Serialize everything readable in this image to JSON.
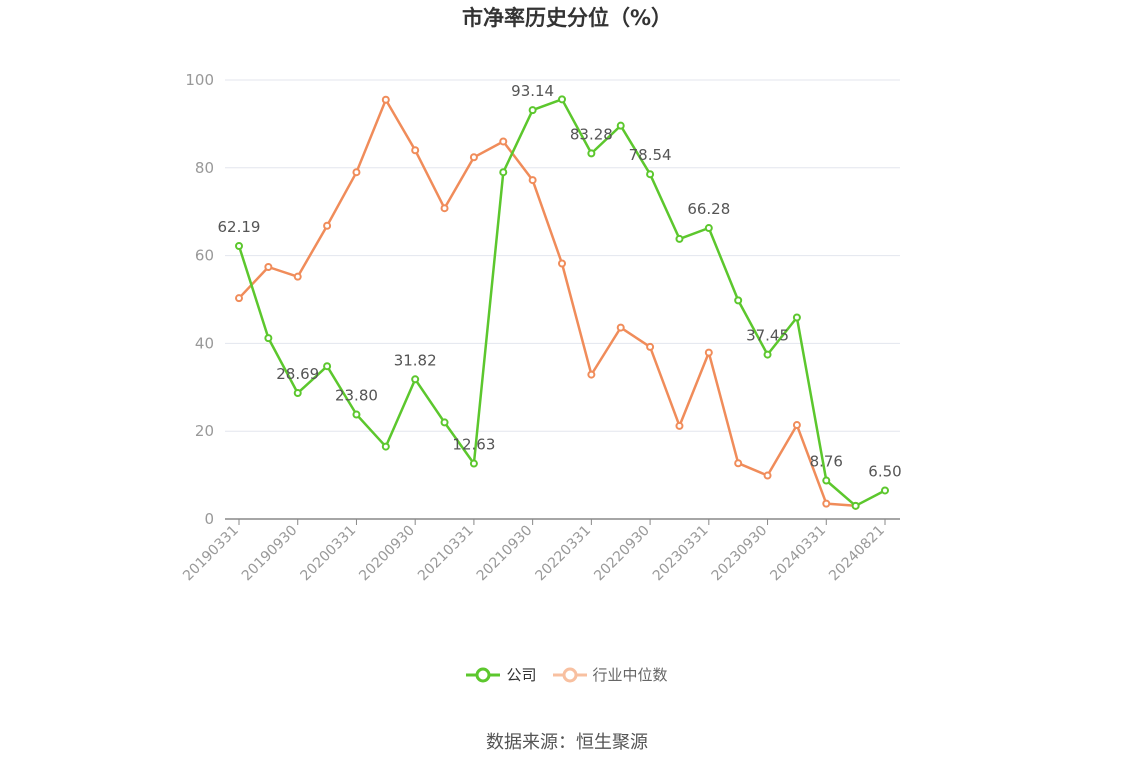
{
  "chart_data": {
    "type": "line",
    "title": "市净率历史分位（%）",
    "xlabel": "",
    "ylabel": "",
    "ylim": [
      0,
      100
    ],
    "yticks": [
      0,
      20,
      40,
      60,
      80,
      100
    ],
    "grid": true,
    "legend_position": "bottom",
    "x": [
      "20190331",
      "20190630",
      "20190930",
      "20191231",
      "20200331",
      "20200630",
      "20200930",
      "20201231",
      "20210331",
      "20210630",
      "20210930",
      "20211231",
      "20220331",
      "20220630",
      "20220930",
      "20221231",
      "20230331",
      "20230630",
      "20230930",
      "20231231",
      "20240331",
      "20240630",
      "20240821"
    ],
    "xtick_labels": [
      "20190331",
      "20190930",
      "20200331",
      "20200930",
      "20210331",
      "20210930",
      "20220331",
      "20220930",
      "20230331",
      "20230930",
      "20240331",
      "20240821"
    ],
    "series": [
      {
        "name": "公司",
        "color": "#5cc72d",
        "values": [
          62.19,
          41.2,
          28.69,
          34.8,
          23.8,
          16.5,
          31.82,
          22.0,
          12.63,
          79.0,
          93.14,
          95.6,
          83.28,
          89.6,
          78.54,
          63.8,
          66.28,
          49.8,
          37.45,
          45.9,
          8.76,
          3.0,
          6.5
        ],
        "labels": {
          "0": "62.19",
          "2": "28.69",
          "4": "23.80",
          "6": "31.82",
          "8": "12.63",
          "10": "93.14",
          "12": "83.28",
          "14": "78.54",
          "16": "66.28",
          "18": "37.45",
          "20": "8.76",
          "22": "6.50"
        }
      },
      {
        "name": "行业中位数",
        "color": "#f08c5a",
        "values": [
          50.3,
          57.4,
          55.2,
          66.8,
          79.0,
          95.5,
          84.0,
          70.8,
          82.4,
          86.0,
          77.2,
          58.2,
          32.9,
          43.6,
          39.2,
          21.2,
          37.9,
          12.7,
          9.9,
          21.4,
          3.5,
          3.0,
          null
        ]
      }
    ]
  },
  "legend": {
    "items": [
      {
        "label": "公司"
      },
      {
        "label": "行业中位数"
      }
    ]
  },
  "source": "数据来源：恒生聚源"
}
